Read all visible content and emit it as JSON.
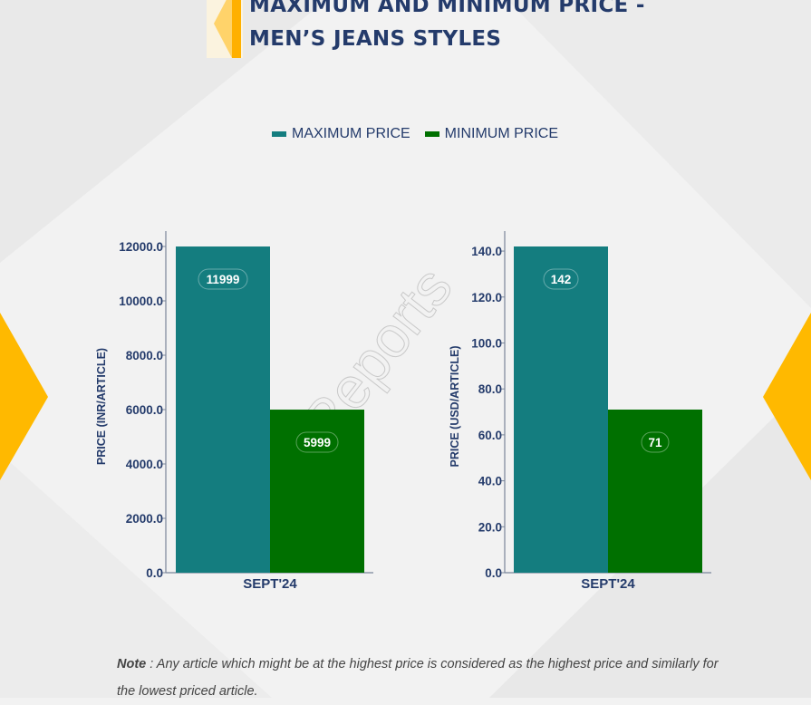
{
  "title": {
    "line1": "MAXIMUM AND MINIMUM PRICE -",
    "line2": "MEN’S JEANS STYLES"
  },
  "legend": [
    {
      "label": "MAXIMUM PRICE",
      "color": "#147d7f"
    },
    {
      "label": "MINIMUM PRICE",
      "color": "#007000"
    }
  ],
  "watermark": "D&J Reports",
  "chart_data": [
    {
      "type": "bar",
      "categories": [
        "SEPT'24"
      ],
      "series": [
        {
          "name": "MAXIMUM PRICE",
          "values": [
            11999
          ],
          "color": "#147d7f"
        },
        {
          "name": "MINIMUM PRICE",
          "values": [
            5999
          ],
          "color": "#007000"
        }
      ],
      "ylabel": "PRICE (INR/ARTICLE)",
      "ylim": [
        0,
        12000
      ],
      "yticks": [
        "0.0",
        "2000.0",
        "4000.0",
        "6000.0",
        "8000.0",
        "10000.0",
        "12000.0"
      ],
      "ytick_values": [
        0,
        2000,
        4000,
        6000,
        8000,
        10000,
        12000
      ],
      "data_labels": [
        "11999",
        "5999"
      ]
    },
    {
      "type": "bar",
      "categories": [
        "SEPT'24"
      ],
      "series": [
        {
          "name": "MAXIMUM PRICE",
          "values": [
            142
          ],
          "color": "#147d7f"
        },
        {
          "name": "MINIMUM PRICE",
          "values": [
            71
          ],
          "color": "#007000"
        }
      ],
      "ylabel": "PRICE (USD/ARTICLE)",
      "ylim": [
        0,
        142
      ],
      "yticks": [
        "0.0",
        "20.0",
        "40.0",
        "60.0",
        "80.0",
        "100.0",
        "120.0",
        "140.0"
      ],
      "ytick_values": [
        0,
        20,
        40,
        60,
        80,
        100,
        120,
        140
      ],
      "data_labels": [
        "142",
        "71"
      ]
    }
  ],
  "note": {
    "label": "Note",
    "text": " : Any article which might be at the highest price is considered as the highest price and similarly for the lowest priced article."
  }
}
